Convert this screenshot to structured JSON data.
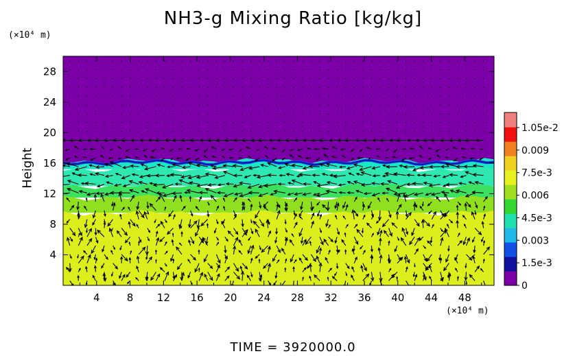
{
  "chart_data": {
    "type": "heatmap",
    "title": "NH3-g Mixing Ratio [kg/kg]",
    "ylabel": "Height",
    "x_unit": "(×10⁴ m)",
    "y_unit": "(×10⁴ m)",
    "x_ticks": [
      "4",
      "8",
      "12",
      "16",
      "20",
      "24",
      "28",
      "32",
      "36",
      "40",
      "44",
      "48"
    ],
    "x_tick_values": [
      4,
      8,
      12,
      16,
      20,
      24,
      28,
      32,
      36,
      40,
      44,
      48
    ],
    "xlim": [
      0,
      51.5
    ],
    "y_ticks": [
      "4",
      "8",
      "12",
      "16",
      "20",
      "24",
      "28"
    ],
    "y_tick_values": [
      4,
      8,
      12,
      16,
      20,
      24,
      28
    ],
    "ylim": [
      0,
      30
    ],
    "colorbar": {
      "labels": [
        "1.05e-2",
        "0.009",
        "7.5e-3",
        "0.006",
        "4.5e-3",
        "0.003",
        "1.5e-3",
        "0"
      ],
      "values": [
        0.0105,
        0.009,
        0.0075,
        0.006,
        0.0045,
        0.003,
        0.0015,
        0
      ],
      "range": [
        0,
        0.0115
      ]
    },
    "layers": [
      {
        "height_range": [
          16,
          30
        ],
        "value": 0,
        "color": "#7b00a8"
      },
      {
        "height_range": [
          15.2,
          16.3
        ],
        "value": 0.0042,
        "color": "#18e8c8"
      },
      {
        "height_range": [
          13,
          15.2
        ],
        "value": 0.0048,
        "color": "#2ee8b0"
      },
      {
        "height_range": [
          11.5,
          13
        ],
        "value": 0.0058,
        "color": "#3ee060"
      },
      {
        "height_range": [
          9.5,
          11.5
        ],
        "value": 0.0066,
        "color": "#90e020"
      },
      {
        "height_range": [
          0,
          9.5
        ],
        "value": 0.0074,
        "color": "#dcee1c"
      }
    ],
    "footer": "TIME = 3920000.0"
  }
}
